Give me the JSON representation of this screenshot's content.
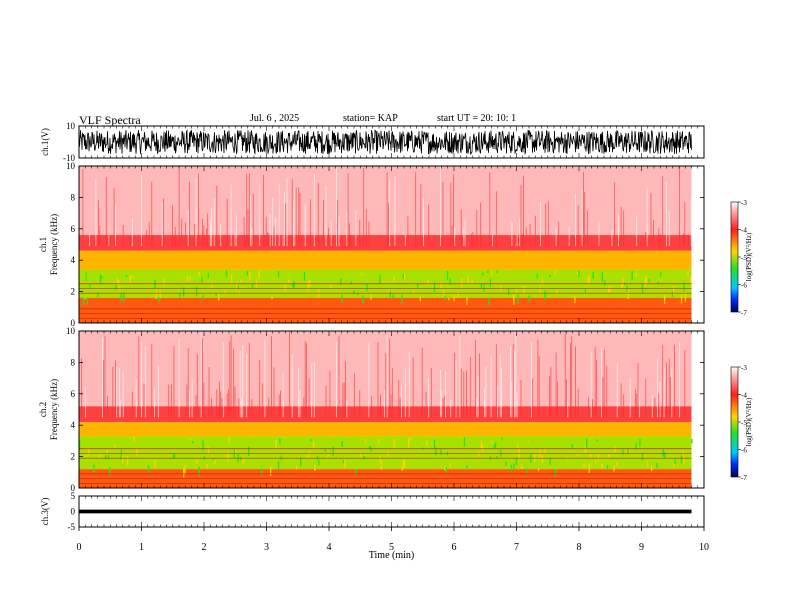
{
  "header": {
    "title": "VLF Spectra",
    "date": "Jul. 6 , 2025",
    "station": "station= KAP",
    "start_ut": "start UT = 20: 10: 1"
  },
  "chart_data": [
    {
      "type": "line",
      "panel": "ch1-waveform",
      "ylabel": "ch.1(V)",
      "ylim": [
        -10,
        10
      ],
      "yticks": [
        "10",
        "-10"
      ],
      "xlim": [
        0,
        10
      ],
      "note_series_color": "#000000"
    },
    {
      "type": "heatmap",
      "panel": "ch1-spectrogram",
      "ylabel": "ch.1 Frequency (kHz)",
      "ylim": [
        0,
        10
      ],
      "yticks": [
        "0",
        "2",
        "4",
        "6",
        "8",
        "10"
      ],
      "xlim": [
        0,
        10
      ],
      "data_extent_min": 9.8,
      "green_band_khz": [
        1.6,
        3.4
      ],
      "yellow_band_khz": [
        3.4,
        4.6
      ],
      "red_band_khz": [
        0,
        1.6
      ],
      "colorbar": {
        "label": "log(PSD)(V²/Hz)",
        "ticks": [
          "-3",
          "-4",
          "-5",
          "-6",
          "-7"
        ],
        "range": [
          -7,
          -3
        ]
      }
    },
    {
      "type": "heatmap",
      "panel": "ch2-spectrogram",
      "ylabel": "ch.2 Frequency (kHz)",
      "ylim": [
        0,
        10
      ],
      "yticks": [
        "0",
        "2",
        "4",
        "6",
        "8",
        "10"
      ],
      "xlim": [
        0,
        10
      ],
      "data_extent_min": 9.8,
      "green_band_khz": [
        1.2,
        3.3
      ],
      "yellow_band_khz": [
        3.3,
        4.2
      ],
      "red_band_khz": [
        0,
        1.2
      ],
      "colorbar": {
        "label": "log(PSD)(V²/Hz)",
        "ticks": [
          "-3",
          "-4",
          "-5",
          "-6",
          "-7"
        ],
        "range": [
          -7,
          -3
        ]
      }
    },
    {
      "type": "line",
      "panel": "ch3-waveform",
      "ylabel": "ch.3(V)",
      "ylim": [
        -5,
        5
      ],
      "yticks": [
        "5",
        "0",
        "-5"
      ],
      "xlim": [
        0,
        10
      ],
      "band_v": [
        -0.6,
        0.6
      ]
    }
  ],
  "xaxis": {
    "label": "Time (min)",
    "ticks": [
      "0",
      "1",
      "2",
      "3",
      "4",
      "5",
      "6",
      "7",
      "8",
      "9",
      "10"
    ]
  },
  "colors": {
    "frame": "#000000",
    "red": "#ff2020",
    "yellow": "#ffd400",
    "green": "#28e028",
    "blue": "#0030ff",
    "navy": "#000066"
  }
}
